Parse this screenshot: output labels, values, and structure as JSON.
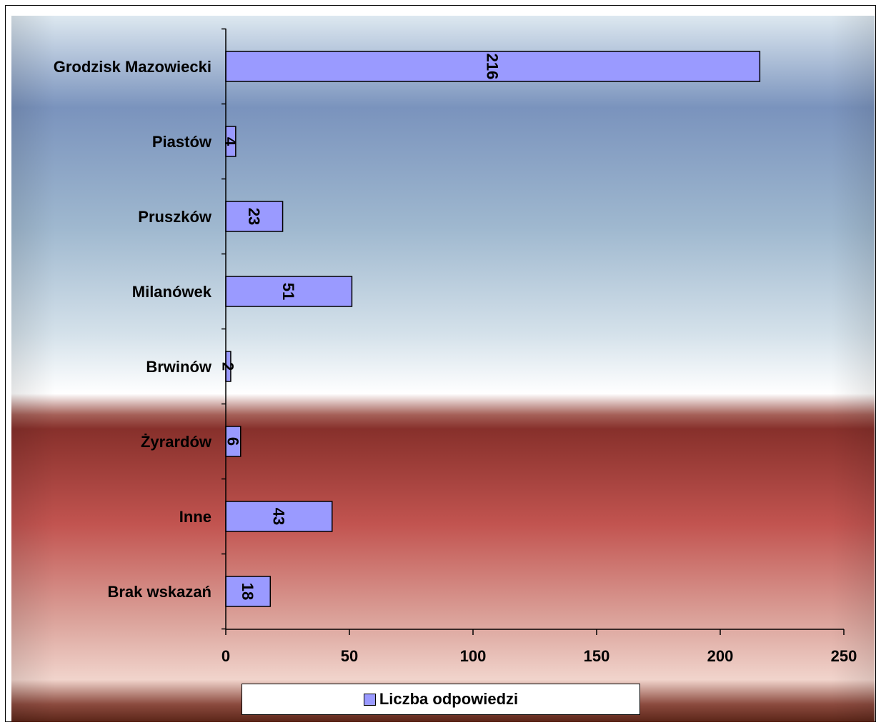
{
  "chart_data": {
    "type": "bar",
    "orientation": "horizontal",
    "categories": [
      "Grodzisk Mazowiecki",
      "Piastów",
      "Pruszków",
      "Milanówek",
      "Brwinów",
      "Żyrardów",
      "Inne",
      "Brak wskazań"
    ],
    "series": [
      {
        "name": "Liczba odpowiedzi",
        "values": [
          216,
          4,
          23,
          51,
          2,
          6,
          43,
          18
        ]
      }
    ],
    "xlim": [
      0,
      250
    ],
    "xticks": [
      "0",
      "50",
      "100",
      "150",
      "200",
      "250"
    ],
    "data_labels": [
      "216",
      "4",
      "23",
      "51",
      "2",
      "6",
      "43",
      "18"
    ],
    "data_label_rotation": "vertical",
    "title": "",
    "xlabel": "",
    "ylabel": "",
    "grid": false,
    "legend_position": "bottom",
    "colors": {
      "bar_fill": "#9a9aff",
      "bar_stroke": "#000000",
      "background_top": "#7b97c0",
      "background_mid": "#ffffff",
      "background_bottom": "#8a2e2a"
    }
  }
}
